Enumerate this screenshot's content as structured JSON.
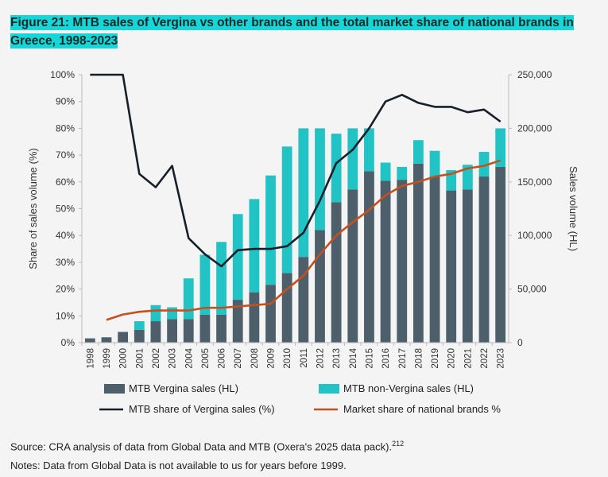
{
  "figure": {
    "title": "Figure 21: MTB sales of Vergina vs other brands and the total market share of national brands in Greece, 1998-2023",
    "source": "Source: CRA analysis of data from Global Data and MTB (Oxera's 2025 data pack).",
    "source_ref": "212",
    "notes": "Notes: Data from Global Data is not available to us for years before 1999."
  },
  "colors": {
    "vergina_bar": "#4d5f6b",
    "non_vergina_bar": "#22c3c4",
    "vergina_share_line": "#17202a",
    "national_share_line": "#c4501e",
    "title_highlight": "#16d6d8"
  },
  "chart_data": {
    "type": "bar",
    "title": "MTB sales of Vergina vs other brands and the total market share of national brands in Greece, 1998-2023",
    "categories": [
      "1998",
      "1999",
      "2000",
      "2001",
      "2002",
      "2003",
      "2004",
      "2005",
      "2006",
      "2007",
      "2008",
      "2009",
      "2010",
      "2011",
      "2012",
      "2013",
      "2014",
      "2015",
      "2016",
      "2017",
      "2018",
      "2019",
      "2020",
      "2021",
      "2022",
      "2023"
    ],
    "ylabel_left": "Share of sales volume (%)",
    "ylabel_right": "Sales volume (HL)",
    "ylim_left": [
      0,
      100
    ],
    "ylim_right": [
      0,
      250000
    ],
    "left_ticks": [
      "0%",
      "10%",
      "20%",
      "30%",
      "40%",
      "50%",
      "60%",
      "70%",
      "80%",
      "90%",
      "100%"
    ],
    "right_ticks": [
      "0",
      "50,000",
      "100,000",
      "150,000",
      "200,000",
      "250,000"
    ],
    "stacked": true,
    "series": [
      {
        "name": "MTB Vergina sales (HL)",
        "kind": "bar",
        "axis": "right",
        "values": [
          4000,
          5000,
          10000,
          12000,
          20000,
          22000,
          22000,
          26000,
          26000,
          40000,
          47000,
          54000,
          65000,
          80000,
          105000,
          131000,
          143000,
          160000,
          151000,
          152000,
          167000,
          155000,
          142000,
          143000,
          155000,
          164000
        ]
      },
      {
        "name": "MTB non-Vergina sales (HL)",
        "kind": "bar",
        "axis": "right",
        "values": [
          0,
          0,
          0,
          8000,
          15000,
          11000,
          38000,
          56000,
          68000,
          80000,
          87000,
          102000,
          118000,
          120000,
          95000,
          64000,
          57000,
          40000,
          17000,
          12000,
          22000,
          24000,
          19000,
          23000,
          23000,
          36000
        ]
      },
      {
        "name": "MTB share of Vergina sales (%)",
        "kind": "line",
        "axis": "left",
        "values": [
          100,
          100,
          100,
          63,
          58,
          66,
          39,
          33,
          28.5,
          34.5,
          35,
          35,
          36,
          41,
          53,
          67,
          72,
          80,
          90,
          92.5,
          89.5,
          88,
          88,
          86,
          87,
          82.5
        ]
      },
      {
        "name": "Market share of national brands %",
        "kind": "line",
        "axis": "left",
        "values": [
          null,
          8.5,
          10.5,
          11.5,
          12,
          12,
          12,
          13,
          13,
          13.5,
          14,
          14.5,
          20,
          25,
          33,
          40,
          45,
          49.5,
          55,
          58.5,
          60,
          62,
          63,
          65,
          66,
          68
        ]
      }
    ]
  }
}
